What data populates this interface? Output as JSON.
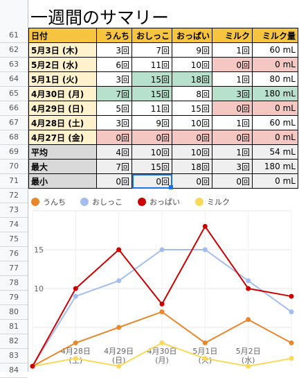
{
  "sheet": {
    "title": "一週間のサマリー",
    "row_numbers": [
      "61",
      "62",
      "63",
      "64",
      "65",
      "66",
      "67",
      "68",
      "69",
      "70",
      "71",
      "72",
      "73",
      "74",
      "75",
      "76",
      "77",
      "78",
      "79",
      "80",
      "81",
      "82",
      "83",
      "84"
    ],
    "headers": [
      "日付",
      "うんち",
      "おしっこ",
      "おっぱい",
      "ミルク",
      "ミルク量"
    ],
    "rows": [
      {
        "date": "5月3日 (木)",
        "c1": "3回",
        "c2": "7回",
        "c3": "9回",
        "c4": "1回",
        "c5": "60 mL"
      },
      {
        "date": "5月2日 (水)",
        "c1": "6回",
        "c2": "11回",
        "c3": "10回",
        "c4": "0回",
        "c5": "0 mL"
      },
      {
        "date": "5月1日 (火)",
        "c1": "3回",
        "c2": "15回",
        "c3": "18回",
        "c4": "1回",
        "c5": "80 mL"
      },
      {
        "date": "4月30日 (月)",
        "c1": "7回",
        "c2": "15回",
        "c3": "8回",
        "c4": "3回",
        "c5": "180 mL"
      },
      {
        "date": "4月29日 (日)",
        "c1": "5回",
        "c2": "11回",
        "c3": "15回",
        "c4": "0回",
        "c5": "0 mL"
      },
      {
        "date": "4月28日 (土)",
        "c1": "3回",
        "c2": "9回",
        "c3": "10回",
        "c4": "1回",
        "c5": "60 mL"
      },
      {
        "date": "4月27日 (金)",
        "c1": "0回",
        "c2": "0回",
        "c3": "0回",
        "c4": "0回",
        "c5": "0 mL"
      },
      {
        "date": "平均",
        "c1": "4回",
        "c2": "10回",
        "c3": "10回",
        "c4": "1回",
        "c5": "54 mL"
      },
      {
        "date": "最大",
        "c1": "7回",
        "c2": "15回",
        "c3": "18回",
        "c4": "3回",
        "c5": "180 mL"
      },
      {
        "date": "最小",
        "c1": "0回",
        "c2": "0回",
        "c3": "0回",
        "c4": "0回",
        "c5": "0 mL"
      }
    ]
  },
  "colors": {
    "header": "#f7c440",
    "date_cell": "#fff2cc",
    "summary_cell": "#d9d9d9",
    "low": "#f4c7c3",
    "high": "#b7e1cd",
    "selection": "#1a73e8"
  },
  "chart_data": {
    "type": "line",
    "categories": [
      "4月27日\n(金)",
      "4月28日\n(土)",
      "4月29日\n(日)",
      "4月30日\n(月)",
      "5月1日\n(火)",
      "5月2日\n(水)",
      "5月3日\n(木)"
    ],
    "visible_tick_labels": [
      "4月28日",
      "(土)",
      "4月29日",
      "(日)",
      "4月30日",
      "(月)",
      "5月1日",
      "(火)",
      "5月2日",
      "(水)"
    ],
    "series": [
      {
        "name": "うんち",
        "color": "#e8862a",
        "values": [
          0,
          3,
          5,
          7,
          3,
          6,
          3
        ]
      },
      {
        "name": "おしっこ",
        "color": "#a4bdf0",
        "values": [
          0,
          9,
          11,
          15,
          15,
          11,
          7
        ]
      },
      {
        "name": "おっぱい",
        "color": "#cc0000",
        "values": [
          0,
          10,
          15,
          8,
          18,
          10,
          9
        ]
      },
      {
        "name": "ミルク",
        "color": "#f9d85a",
        "values": [
          0,
          1,
          0,
          3,
          1,
          0,
          1
        ]
      }
    ],
    "y_ticks": [
      "10",
      "15"
    ],
    "ylim": [
      0,
      20
    ],
    "grid": true,
    "legend": "top-left"
  }
}
